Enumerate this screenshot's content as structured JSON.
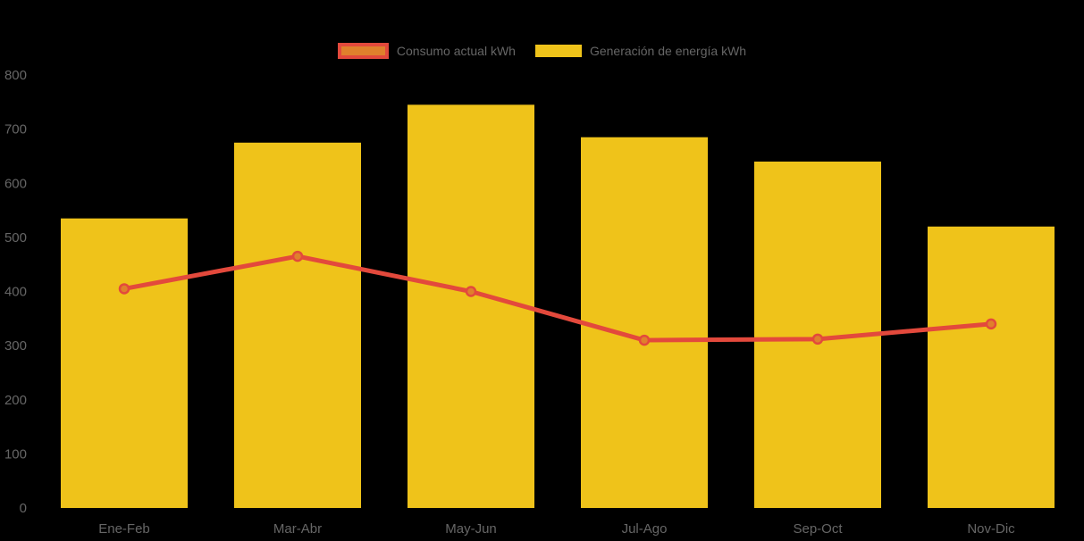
{
  "legend": {
    "items": [
      {
        "label": "Consumo actual kWh",
        "type": "line"
      },
      {
        "label": "Generación de energía kWh",
        "type": "bar"
      }
    ],
    "position": "top"
  },
  "colors": {
    "background": "#000000",
    "bar_fill": "#efc31a",
    "line_stroke": "#e3493c",
    "point_fill": "#e0802c",
    "point_border": "#e3493c",
    "axis_text": "#666666"
  },
  "chart_data": {
    "type": "bar",
    "title": "",
    "xlabel": "",
    "ylabel": "",
    "categories": [
      "Ene-Feb",
      "Mar-Abr",
      "May-Jun",
      "Jul-Ago",
      "Sep-Oct",
      "Nov-Dic"
    ],
    "series": [
      {
        "name": "Consumo actual kWh",
        "type": "line",
        "values": [
          405,
          465,
          400,
          310,
          312,
          340
        ],
        "color": "#e3493c",
        "point_fill": "#e0802c"
      },
      {
        "name": "Generación de energía kWh",
        "type": "bar",
        "values": [
          535,
          675,
          745,
          685,
          640,
          520
        ],
        "color": "#efc31a"
      }
    ],
    "ylim": [
      0,
      800
    ],
    "ytick_step": 100,
    "ytick_labels": [
      "800",
      "700",
      "600",
      "500",
      "400",
      "300",
      "200",
      "100",
      "0"
    ],
    "grid": false,
    "legend_position": "top"
  }
}
